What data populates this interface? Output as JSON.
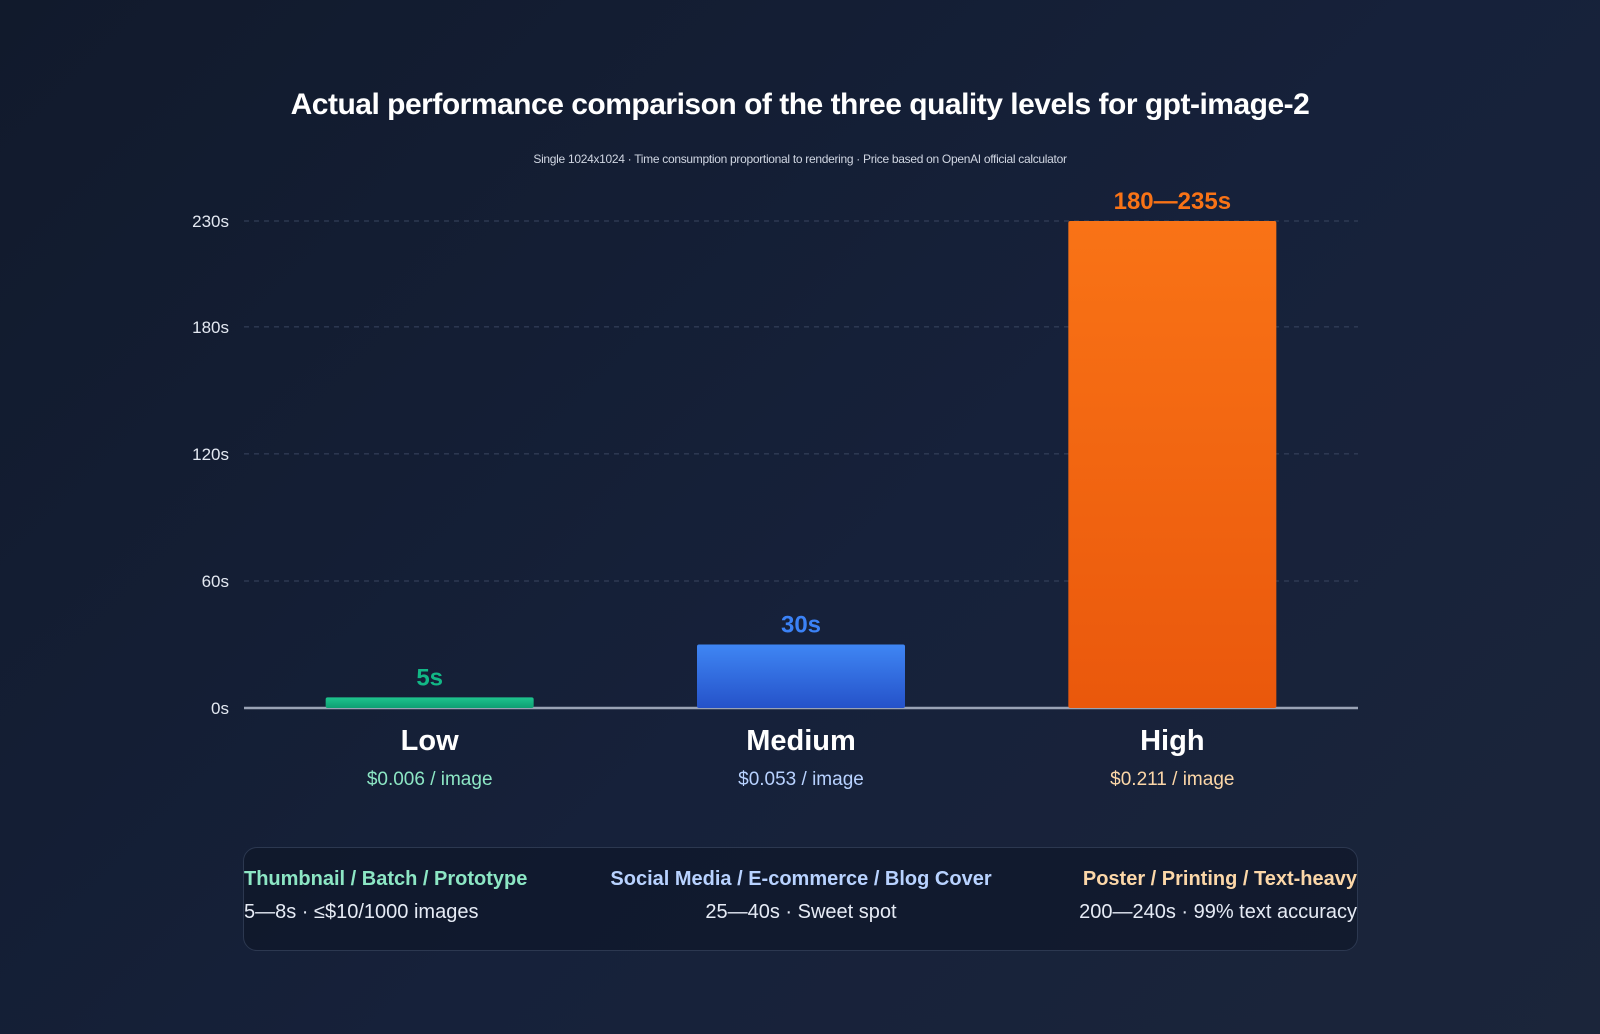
{
  "chart_data": {
    "type": "bar",
    "title": "Actual performance comparison of the three quality levels for gpt-image-2",
    "subtitle": "Single 1024x1024 · Time consumption proportional to rendering · Price based on OpenAI official calculator",
    "categories": [
      "Low",
      "Medium",
      "High"
    ],
    "values": [
      5,
      30,
      230
    ],
    "value_labels": [
      "5s",
      "30s",
      "180—235s"
    ],
    "prices": [
      "$0.006 / image",
      "$0.053 / image",
      "$0.211 / image"
    ],
    "colors": [
      "#12b886",
      "#3b82f6",
      "#f97316"
    ],
    "price_colors": [
      "#8ce6c4",
      "#b8d2ff",
      "#fcd7a8"
    ],
    "y_ticks": [
      0,
      60,
      120,
      180,
      230
    ],
    "y_tick_labels": [
      "0s",
      "60s",
      "120s",
      "180s",
      "230s"
    ],
    "ylim": [
      0,
      230
    ],
    "grid": true,
    "xlabel": "",
    "ylabel": ""
  },
  "use_cases": [
    {
      "title": "Thumbnail / Batch / Prototype",
      "desc": "5—8s · ≤$10/1000 images",
      "color": "#8ce6c4"
    },
    {
      "title": "Social Media / E-commerce / Blog Cover",
      "desc": "25—40s · Sweet spot",
      "color": "#b8d2ff"
    },
    {
      "title": "Poster / Printing / Text-heavy",
      "desc": "200—240s · 99% text accuracy",
      "color": "#fcd7a8"
    }
  ]
}
